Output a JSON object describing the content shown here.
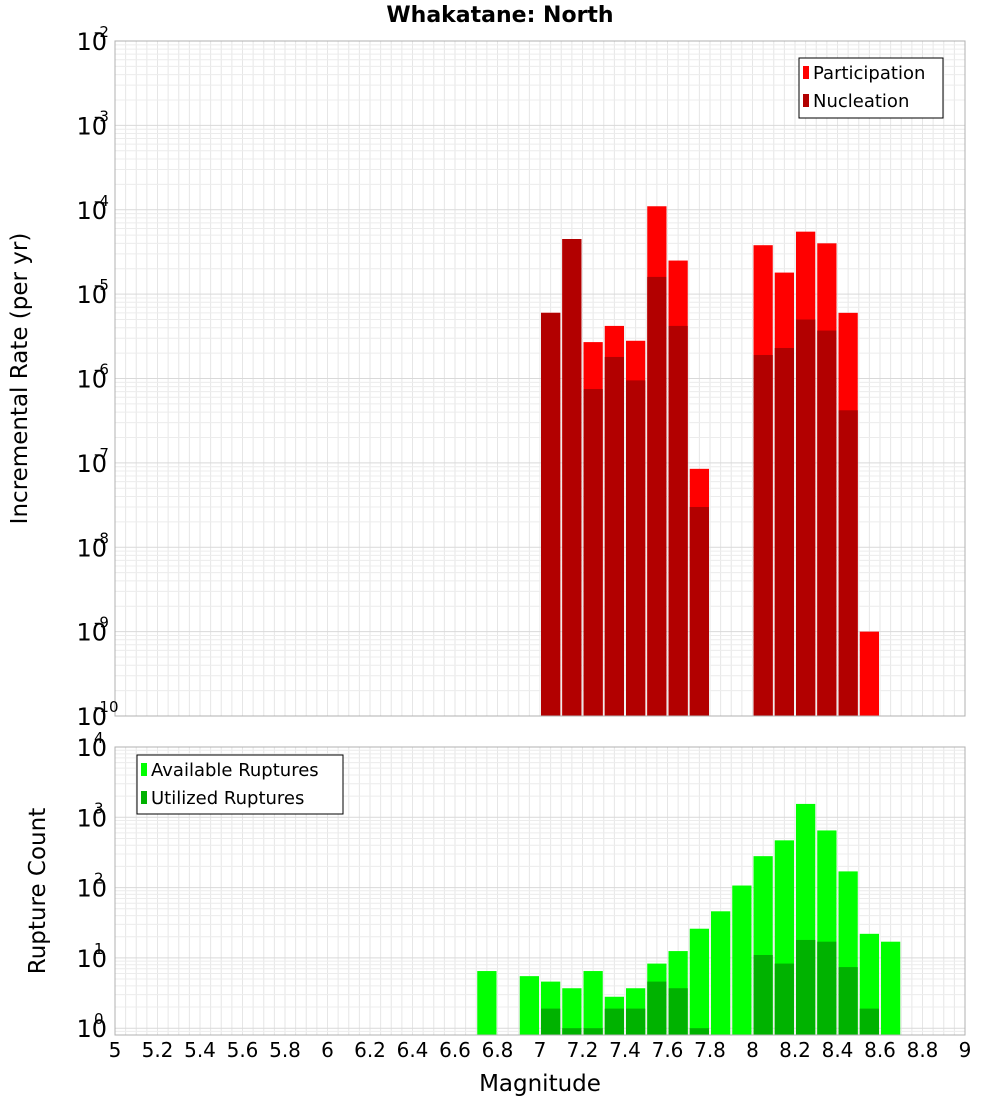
{
  "chart_data": [
    {
      "type": "bar",
      "title": "Whakatane: North",
      "xlabel": "",
      "ylabel": "Incremental Rate (per yr)",
      "y_scale": "log",
      "xlim": [
        5,
        9
      ],
      "ylim": [
        1e-10,
        0.01
      ],
      "y_ticks": [
        {
          "base": "10",
          "exp": "-2",
          "value": 0.01
        },
        {
          "base": "10",
          "exp": "-3",
          "value": 0.001
        },
        {
          "base": "10",
          "exp": "-4",
          "value": 0.0001
        },
        {
          "base": "10",
          "exp": "-5",
          "value": 1e-05
        },
        {
          "base": "10",
          "exp": "-6",
          "value": 1e-06
        },
        {
          "base": "10",
          "exp": "-7",
          "value": 1e-07
        },
        {
          "base": "10",
          "exp": "-8",
          "value": 1e-08
        },
        {
          "base": "10",
          "exp": "-9",
          "value": 1e-09
        },
        {
          "base": "10",
          "exp": "-10",
          "value": 1e-10
        }
      ],
      "grid": true,
      "legend_position": "top-right",
      "bar_width": 0.1,
      "series": [
        {
          "name": "Participation",
          "color": "#ff0000",
          "points": [
            {
              "x": 7.05,
              "y": 6e-06
            },
            {
              "x": 7.15,
              "y": 4.5e-05
            },
            {
              "x": 7.25,
              "y": 2.7e-06
            },
            {
              "x": 7.35,
              "y": 4.2e-06
            },
            {
              "x": 7.45,
              "y": 2.8e-06
            },
            {
              "x": 7.55,
              "y": 0.00011
            },
            {
              "x": 7.65,
              "y": 2.5e-05
            },
            {
              "x": 7.75,
              "y": 8.5e-08
            },
            {
              "x": 8.05,
              "y": 3.8e-05
            },
            {
              "x": 8.15,
              "y": 1.8e-05
            },
            {
              "x": 8.25,
              "y": 5.5e-05
            },
            {
              "x": 8.35,
              "y": 4e-05
            },
            {
              "x": 8.45,
              "y": 6e-06
            },
            {
              "x": 8.55,
              "y": 1e-09
            }
          ]
        },
        {
          "name": "Nucleation",
          "color": "#b20000",
          "points": [
            {
              "x": 7.05,
              "y": 6e-06
            },
            {
              "x": 7.15,
              "y": 4.5e-05
            },
            {
              "x": 7.25,
              "y": 7.5e-07
            },
            {
              "x": 7.35,
              "y": 1.8e-06
            },
            {
              "x": 7.45,
              "y": 9.5e-07
            },
            {
              "x": 7.55,
              "y": 1.6e-05
            },
            {
              "x": 7.65,
              "y": 4.2e-06
            },
            {
              "x": 7.75,
              "y": 3e-08
            },
            {
              "x": 8.05,
              "y": 1.9e-06
            },
            {
              "x": 8.15,
              "y": 2.3e-06
            },
            {
              "x": 8.25,
              "y": 5e-06
            },
            {
              "x": 8.35,
              "y": 3.7e-06
            },
            {
              "x": 8.45,
              "y": 4.2e-07
            }
          ]
        }
      ]
    },
    {
      "type": "bar",
      "title": "",
      "xlabel": "Magnitude",
      "ylabel": "Rupture Count",
      "y_scale": "log",
      "xlim": [
        5,
        9
      ],
      "ylim": [
        0.8,
        10000
      ],
      "x_ticks": [
        "5",
        "5.2",
        "5.4",
        "5.6",
        "5.8",
        "6",
        "6.2",
        "6.4",
        "6.6",
        "6.8",
        "7",
        "7.2",
        "7.4",
        "7.6",
        "7.8",
        "8",
        "8.2",
        "8.4",
        "8.6",
        "8.8",
        "9"
      ],
      "y_ticks": [
        {
          "base": "10",
          "exp": "4",
          "value": 10000
        },
        {
          "base": "10",
          "exp": "3",
          "value": 1000
        },
        {
          "base": "10",
          "exp": "2",
          "value": 100
        },
        {
          "base": "10",
          "exp": "1",
          "value": 10
        },
        {
          "base": "10",
          "exp": "0",
          "value": 1
        }
      ],
      "grid": true,
      "legend_position": "top-left",
      "bar_width": 0.1,
      "series": [
        {
          "name": "Available Ruptures",
          "color": "#00ff00",
          "points": [
            {
              "x": 6.75,
              "y": 6.5
            },
            {
              "x": 6.95,
              "y": 5.5
            },
            {
              "x": 7.05,
              "y": 4.6
            },
            {
              "x": 7.15,
              "y": 3.7
            },
            {
              "x": 7.25,
              "y": 6.5
            },
            {
              "x": 7.35,
              "y": 2.8
            },
            {
              "x": 7.45,
              "y": 3.7
            },
            {
              "x": 7.55,
              "y": 8.3
            },
            {
              "x": 7.65,
              "y": 12.5
            },
            {
              "x": 7.75,
              "y": 26
            },
            {
              "x": 7.85,
              "y": 46
            },
            {
              "x": 7.95,
              "y": 107
            },
            {
              "x": 8.05,
              "y": 280
            },
            {
              "x": 8.15,
              "y": 470
            },
            {
              "x": 8.25,
              "y": 1550
            },
            {
              "x": 8.35,
              "y": 650
            },
            {
              "x": 8.45,
              "y": 170
            },
            {
              "x": 8.55,
              "y": 22
            },
            {
              "x": 8.65,
              "y": 17
            }
          ]
        },
        {
          "name": "Utilized Ruptures",
          "color": "#00b200",
          "points": [
            {
              "x": 7.05,
              "y": 1.9
            },
            {
              "x": 7.15,
              "y": 1
            },
            {
              "x": 7.25,
              "y": 1
            },
            {
              "x": 7.35,
              "y": 1.9
            },
            {
              "x": 7.45,
              "y": 1.9
            },
            {
              "x": 7.55,
              "y": 4.6
            },
            {
              "x": 7.65,
              "y": 3.7
            },
            {
              "x": 7.75,
              "y": 1
            },
            {
              "x": 8.05,
              "y": 11
            },
            {
              "x": 8.15,
              "y": 8.3
            },
            {
              "x": 8.25,
              "y": 18
            },
            {
              "x": 8.35,
              "y": 17
            },
            {
              "x": 8.45,
              "y": 7.4
            },
            {
              "x": 8.55,
              "y": 1.9
            }
          ]
        }
      ]
    }
  ]
}
